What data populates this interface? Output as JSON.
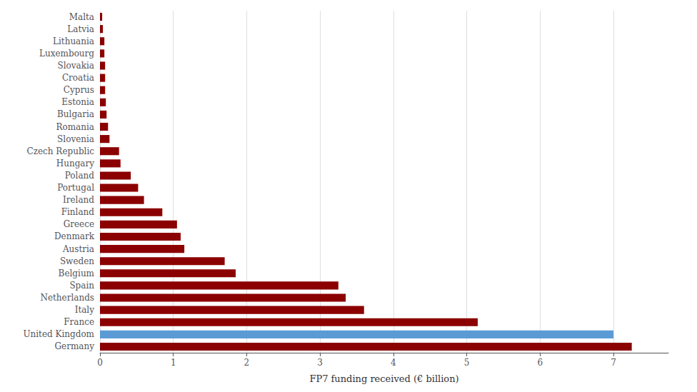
{
  "chart_data": {
    "type": "bar",
    "orientation": "horizontal",
    "categories": [
      "Germany",
      "United Kingdom",
      "France",
      "Italy",
      "Netherlands",
      "Spain",
      "Belgium",
      "Sweden",
      "Austria",
      "Denmark",
      "Greece",
      "Finland",
      "Ireland",
      "Portugal",
      "Poland",
      "Hungary",
      "Czech Republic",
      "Slovenia",
      "Romania",
      "Bulgaria",
      "Estonia",
      "Cyprus",
      "Croatia",
      "Slovakia",
      "Luxembourg",
      "Lithuania",
      "Latvia",
      "Malta"
    ],
    "values": [
      7.25,
      7.0,
      5.15,
      3.6,
      3.35,
      3.25,
      1.85,
      1.7,
      1.15,
      1.1,
      1.05,
      0.85,
      0.6,
      0.52,
      0.42,
      0.28,
      0.26,
      0.13,
      0.11,
      0.09,
      0.08,
      0.07,
      0.07,
      0.07,
      0.06,
      0.06,
      0.04,
      0.03
    ],
    "colors": [
      "#8B0000",
      "#5B9BD5",
      "#8B0000",
      "#8B0000",
      "#8B0000",
      "#8B0000",
      "#8B0000",
      "#8B0000",
      "#8B0000",
      "#8B0000",
      "#8B0000",
      "#8B0000",
      "#8B0000",
      "#8B0000",
      "#8B0000",
      "#8B0000",
      "#8B0000",
      "#8B0000",
      "#8B0000",
      "#8B0000",
      "#8B0000",
      "#8B0000",
      "#8B0000",
      "#8B0000",
      "#8B0000",
      "#8B0000",
      "#8B0000",
      "#8B0000"
    ],
    "xlabel": "FP7 funding received (€ billion)",
    "xlim": [
      0,
      7.75
    ],
    "xticks": [
      0,
      1,
      2,
      3,
      4,
      5,
      6,
      7
    ],
    "grid": true
  }
}
